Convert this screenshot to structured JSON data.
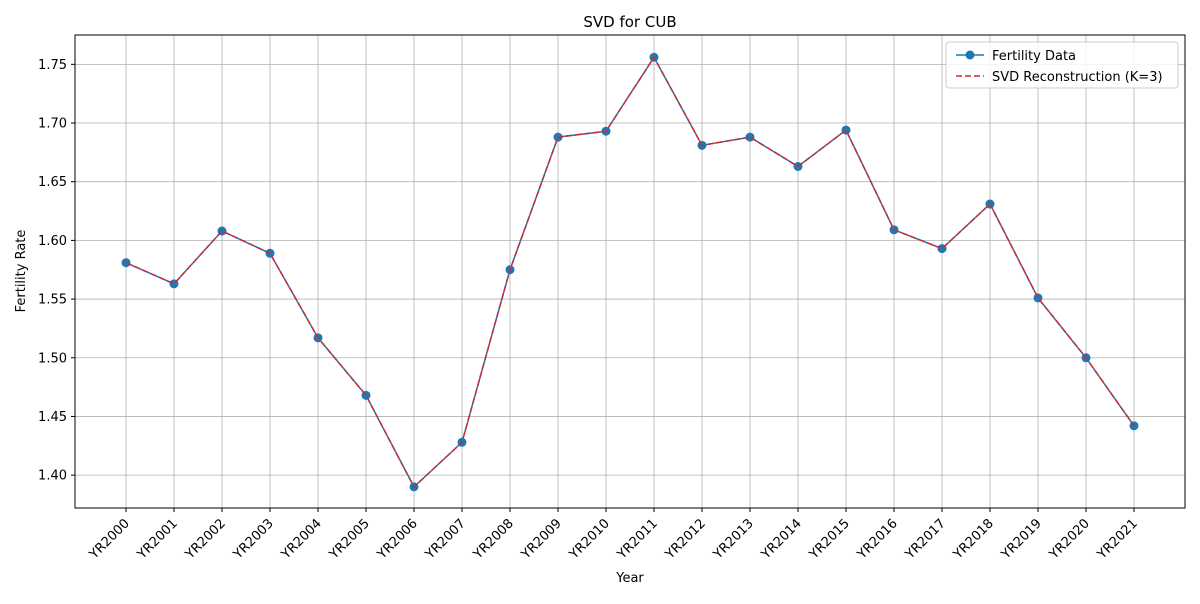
{
  "chart_data": {
    "type": "line",
    "title": "SVD for CUB",
    "xlabel": "Year",
    "ylabel": "Fertility Rate",
    "categories": [
      "YR2000",
      "YR2001",
      "YR2002",
      "YR2003",
      "YR2004",
      "YR2005",
      "YR2006",
      "YR2007",
      "YR2008",
      "YR2009",
      "YR2010",
      "YR2011",
      "YR2012",
      "YR2013",
      "YR2014",
      "YR2015",
      "YR2016",
      "YR2017",
      "YR2018",
      "YR2019",
      "YR2020",
      "YR2021"
    ],
    "ylim": [
      1.372,
      1.775
    ],
    "yticks": [
      "1.40",
      "1.45",
      "1.50",
      "1.55",
      "1.60",
      "1.65",
      "1.70",
      "1.75"
    ],
    "grid": true,
    "legend_position": "top-right",
    "series": [
      {
        "name": "Fertility Data",
        "color": "#1f77b4",
        "style": "solid-with-circle-markers",
        "values": [
          1.581,
          1.563,
          1.608,
          1.589,
          1.517,
          1.468,
          1.39,
          1.428,
          1.575,
          1.688,
          1.693,
          1.756,
          1.681,
          1.688,
          1.663,
          1.694,
          1.609,
          1.593,
          1.631,
          1.551,
          1.5,
          1.442
        ]
      },
      {
        "name": "SVD Reconstruction (K=3)",
        "color": "#d62728",
        "style": "dashed",
        "values": [
          1.581,
          1.563,
          1.608,
          1.589,
          1.517,
          1.468,
          1.39,
          1.428,
          1.575,
          1.688,
          1.693,
          1.756,
          1.681,
          1.688,
          1.663,
          1.694,
          1.609,
          1.593,
          1.631,
          1.551,
          1.5,
          1.442
        ]
      }
    ]
  }
}
